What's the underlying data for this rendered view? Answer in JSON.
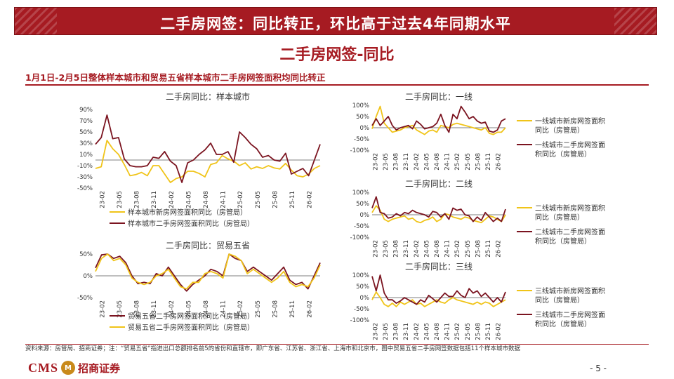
{
  "header": {
    "title": "二手房网签：同比转正，环比高于过去4年同期水平"
  },
  "subtitle": "二手房网签-同比",
  "caption": "1月1日-2月5日整体样本城市和贸易五省样本城市二手房网签面积均同比转正",
  "colors": {
    "brand": "#a61b22",
    "series_new": "#f0c419",
    "series_second": "#7b1420"
  },
  "chart_data": [
    {
      "id": "sample",
      "type": "line",
      "title": "二手房同比：样本城市",
      "xticks": [
        "23-02",
        "23-05",
        "23-08",
        "23-11",
        "24-02",
        "24-05",
        "24-08",
        "24-11",
        "25-02",
        "25-05",
        "25-08",
        "25-11",
        "26-02"
      ],
      "yticks": [
        "90%",
        "70%",
        "50%",
        "30%",
        "10%",
        "-10%",
        "-30%",
        "-50%"
      ],
      "ylim": [
        -50,
        90
      ],
      "series": [
        {
          "name": "样本城市新房网签面积同比（房管局）",
          "color": "#f0c419",
          "values": [
            -15,
            -12,
            35,
            20,
            10,
            -8,
            -28,
            -26,
            -22,
            -28,
            -10,
            -10,
            -25,
            -40,
            -33,
            -30,
            -20,
            -20,
            -24,
            -30,
            -8,
            -5,
            8,
            2,
            -2,
            -10,
            -5,
            -16,
            -12,
            -15,
            -10,
            -14,
            -16,
            -6,
            -18,
            -28,
            -30,
            -25,
            -15,
            -10
          ]
        },
        {
          "name": "样本城市二手房网签面积同比（房管局）",
          "color": "#7b1420",
          "values": [
            28,
            40,
            80,
            38,
            40,
            2,
            -10,
            -12,
            -12,
            -10,
            5,
            3,
            15,
            -2,
            -10,
            -40,
            -5,
            0,
            10,
            18,
            30,
            10,
            10,
            15,
            -4,
            50,
            40,
            28,
            20,
            5,
            8,
            0,
            -2,
            12,
            -25,
            -20,
            -15,
            -28,
            0,
            28
          ]
        }
      ]
    },
    {
      "id": "tier1",
      "type": "line",
      "title": "二手房同比：一线",
      "xticks": [
        "23-02",
        "23-05",
        "23-08",
        "23-11",
        "24-02",
        "24-05",
        "24-08",
        "24-11",
        "25-02",
        "25-05",
        "25-08",
        "25-11",
        "26-02"
      ],
      "yticks": [
        "100%",
        "50%",
        "0%",
        "-50%",
        "-100%"
      ],
      "ylim": [
        -100,
        100
      ],
      "series": [
        {
          "name": "一线城市新房网签面积同比（房管局）",
          "color": "#f0c419",
          "values": [
            -5,
            50,
            95,
            20,
            0,
            -20,
            -15,
            -10,
            0,
            5,
            10,
            -10,
            -20,
            -30,
            -15,
            -10,
            -20,
            10,
            5,
            0,
            15,
            20,
            15,
            10,
            5,
            0,
            -5,
            -10,
            0,
            -25,
            -30,
            -20,
            -20,
            0
          ]
        },
        {
          "name": "一线城市二手房网签面积同比（房管局）",
          "color": "#7b1420",
          "values": [
            10,
            40,
            10,
            30,
            50,
            10,
            -10,
            0,
            5,
            10,
            -5,
            30,
            15,
            -5,
            0,
            5,
            20,
            60,
            10,
            -20,
            60,
            40,
            95,
            70,
            40,
            50,
            30,
            20,
            25,
            -15,
            -20,
            -10,
            30,
            40
          ]
        }
      ]
    },
    {
      "id": "tier2",
      "type": "line",
      "title": "二手房同比：二线",
      "xticks": [
        "23-02",
        "23-05",
        "23-08",
        "23-11",
        "24-02",
        "24-05",
        "24-08",
        "24-11",
        "25-02",
        "25-05",
        "25-08",
        "25-11",
        "26-02"
      ],
      "yticks": [
        "100%",
        "50%",
        "0%",
        "-50%",
        "-100%"
      ],
      "ylim": [
        -100,
        100
      ],
      "series": [
        {
          "name": "二线城市新房网签面积同比（房管局）",
          "color": "#f0c419",
          "values": [
            10,
            40,
            20,
            -20,
            -30,
            -20,
            -15,
            -10,
            -5,
            -20,
            -15,
            -30,
            -35,
            -25,
            -20,
            -10,
            -30,
            -20,
            5,
            0,
            -10,
            -15,
            -20,
            -10,
            -15,
            -25,
            -30,
            -35,
            -20,
            -5,
            -10,
            -20,
            -30,
            0
          ]
        },
        {
          "name": "二线城市二手房网签面积同比（房管局）",
          "color": "#7b1420",
          "values": [
            30,
            80,
            10,
            5,
            -15,
            -10,
            5,
            -5,
            10,
            5,
            20,
            10,
            5,
            0,
            -10,
            15,
            10,
            -10,
            5,
            -20,
            30,
            20,
            25,
            0,
            -5,
            -30,
            -10,
            -25,
            10,
            -10,
            -30,
            -15,
            -30,
            25
          ]
        }
      ]
    },
    {
      "id": "tier3",
      "type": "line",
      "title": "二手房同比：三线",
      "xticks": [
        "23-02",
        "23-05",
        "23-08",
        "23-11",
        "24-02",
        "24-05",
        "24-08",
        "24-11",
        "25-02",
        "25-05",
        "25-08",
        "25-11",
        "26-02"
      ],
      "yticks": [
        "100%",
        "50%",
        "0%",
        "-50%",
        "-100%"
      ],
      "ylim": [
        -100,
        100
      ],
      "series": [
        {
          "name": "三线城市新房网签面积同比（房管局）",
          "color": "#f0c419",
          "values": [
            -10,
            25,
            0,
            -30,
            -40,
            -25,
            -40,
            -20,
            -30,
            -20,
            -10,
            -30,
            -25,
            -40,
            -30,
            -20,
            -10,
            -20,
            -25,
            -10,
            0,
            -10,
            -15,
            -20,
            -25,
            -30,
            -20,
            -30,
            -20,
            -25,
            -40,
            -30,
            -20,
            -10
          ]
        },
        {
          "name": "三线城市二手房网签面积同比（房管局）",
          "color": "#7b1420",
          "values": [
            95,
            30,
            100,
            20,
            -10,
            -10,
            -25,
            -15,
            0,
            -10,
            -20,
            -30,
            -10,
            -20,
            10,
            -5,
            -20,
            0,
            20,
            5,
            5,
            30,
            10,
            0,
            40,
            20,
            30,
            5,
            20,
            0,
            -20,
            0,
            -20,
            25
          ]
        }
      ]
    },
    {
      "id": "trade5",
      "type": "line",
      "title": "二手房同比：贸易五省",
      "xticks": [
        "23-02",
        "23-05",
        "23-08",
        "23-11",
        "24-02",
        "24-05",
        "24-08",
        "24-11",
        "25-02",
        "25-05",
        "25-08",
        "25-11",
        "26-02"
      ],
      "yticks": [
        "50%",
        "0%",
        "-50%"
      ],
      "ylim": [
        -50,
        50
      ],
      "series": [
        {
          "name": "贸易五省二手房网签面积同比（房管局）",
          "color": "#7b1420",
          "values": [
            18,
            48,
            50,
            40,
            45,
            30,
            0,
            -18,
            -15,
            -18,
            5,
            0,
            20,
            0,
            -20,
            -35,
            -20,
            -10,
            0,
            15,
            10,
            0,
            50,
            40,
            35,
            10,
            20,
            10,
            0,
            -10,
            5,
            20,
            -10,
            -20,
            -15,
            -30,
            0,
            30
          ]
        },
        {
          "name": "贸易五省二手房网签面积同比（房管局）",
          "color": "#f0c419",
          "values": [
            10,
            40,
            50,
            35,
            40,
            25,
            -5,
            -15,
            -20,
            -15,
            0,
            5,
            15,
            -5,
            -25,
            -30,
            -15,
            -15,
            5,
            10,
            5,
            -5,
            50,
            45,
            35,
            5,
            15,
            5,
            -5,
            -15,
            -5,
            10,
            -15,
            -25,
            -20,
            -25,
            -5,
            25
          ]
        }
      ]
    }
  ],
  "source": "资料来源：房管局、招商证券；注：“贸易五省”指进出口总额排名前5的省份和直辖市，即广东省、江苏省、浙江省、上海市和北京市，图中贸易五省二手房网签数据包括11个样本城市数据",
  "footer": {
    "logo_en": "CMS",
    "logo_mark": "M",
    "logo_cn": "招商证券",
    "page": "- 5 -"
  }
}
